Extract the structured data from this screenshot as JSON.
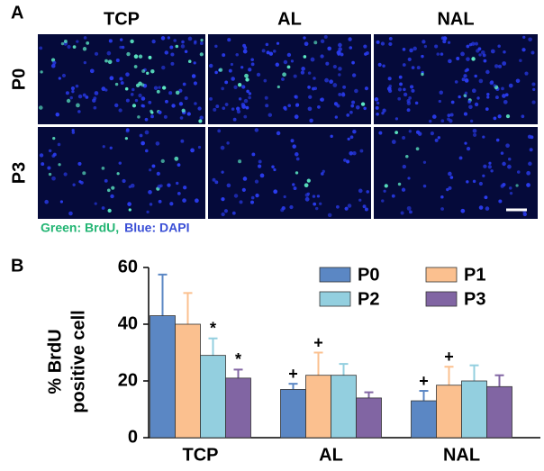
{
  "panel_a": {
    "label": "A",
    "columns": [
      "TCP",
      "AL",
      "NAL"
    ],
    "rows": [
      "P0",
      "P3"
    ],
    "stain_legend": [
      {
        "text": "Green: BrdU,",
        "color": "#22b573"
      },
      {
        "text": "Blue: DAPI",
        "color": "#3a4fd6"
      }
    ]
  },
  "chart_data": {
    "type": "bar",
    "label": "B",
    "ylabel": [
      "% BrdU",
      "positive cell"
    ],
    "categories": [
      "TCP",
      "AL",
      "NAL"
    ],
    "series": [
      {
        "name": "P0",
        "color": "#5b87c4",
        "values": [
          43,
          17,
          13
        ],
        "errors": [
          14.5,
          2,
          3.5
        ],
        "markers": [
          null,
          "+",
          "+"
        ]
      },
      {
        "name": "P1",
        "color": "#fbc08f",
        "values": [
          40,
          22,
          18.5
        ],
        "errors": [
          11,
          8,
          6.5
        ],
        "markers": [
          null,
          "+",
          "+"
        ]
      },
      {
        "name": "P2",
        "color": "#93cfdf",
        "values": [
          29,
          22,
          20
        ],
        "errors": [
          6,
          4,
          5.5
        ],
        "markers": [
          "*",
          null,
          null
        ]
      },
      {
        "name": "P3",
        "color": "#8165a3",
        "values": [
          21,
          14,
          18
        ],
        "errors": [
          3,
          2,
          4
        ],
        "markers": [
          "*",
          null,
          null
        ]
      }
    ],
    "ylim": [
      0,
      60
    ],
    "yticks": [
      0,
      20,
      40,
      60
    ],
    "legend": "upper right"
  }
}
